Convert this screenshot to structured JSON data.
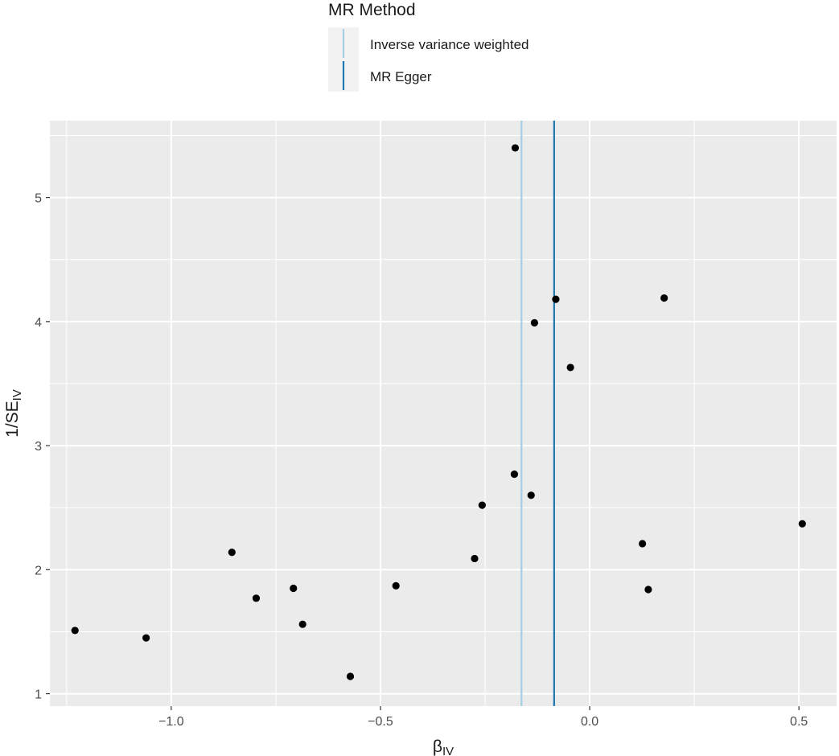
{
  "chart_data": {
    "type": "scatter",
    "xlabel": {
      "main": "β",
      "sub": "IV"
    },
    "ylabel": {
      "main": "1/SE",
      "sub": "IV"
    },
    "xlim": [
      -1.29,
      0.59
    ],
    "ylim": [
      0.9,
      5.62
    ],
    "x_ticks": [
      -1.0,
      -0.5,
      0.0,
      0.5
    ],
    "x_tick_labels": [
      "−1.0",
      "−0.5",
      "0.0",
      "0.5"
    ],
    "y_ticks": [
      1,
      2,
      3,
      4,
      5
    ],
    "y_tick_labels": [
      "1",
      "2",
      "3",
      "4",
      "5"
    ],
    "grid": true,
    "legend_position": "top",
    "points": [
      {
        "x": -1.23,
        "y": 1.51
      },
      {
        "x": -1.06,
        "y": 1.45
      },
      {
        "x": -0.855,
        "y": 2.14
      },
      {
        "x": -0.797,
        "y": 1.77
      },
      {
        "x": -0.708,
        "y": 1.85
      },
      {
        "x": -0.686,
        "y": 1.56
      },
      {
        "x": -0.572,
        "y": 1.14
      },
      {
        "x": -0.463,
        "y": 1.87
      },
      {
        "x": -0.275,
        "y": 2.09
      },
      {
        "x": -0.257,
        "y": 2.52
      },
      {
        "x": -0.18,
        "y": 2.77
      },
      {
        "x": -0.178,
        "y": 5.4
      },
      {
        "x": -0.14,
        "y": 2.6
      },
      {
        "x": -0.132,
        "y": 3.99
      },
      {
        "x": -0.081,
        "y": 4.18
      },
      {
        "x": -0.046,
        "y": 3.63
      },
      {
        "x": 0.126,
        "y": 2.21
      },
      {
        "x": 0.14,
        "y": 1.84
      },
      {
        "x": 0.178,
        "y": 4.19
      },
      {
        "x": 0.508,
        "y": 2.37
      }
    ],
    "vlines": [
      {
        "name": "Inverse variance weighted",
        "x": -0.163,
        "color": "#a6cee3"
      },
      {
        "name": "MR Egger",
        "x": -0.085,
        "color": "#1f78b4"
      }
    ],
    "point_color": "#000000",
    "panel_color": "#ebebeb",
    "grid_color": "#ffffff",
    "legend": {
      "title": "MR Method",
      "items": [
        "Inverse variance weighted",
        "MR Egger"
      ]
    }
  }
}
